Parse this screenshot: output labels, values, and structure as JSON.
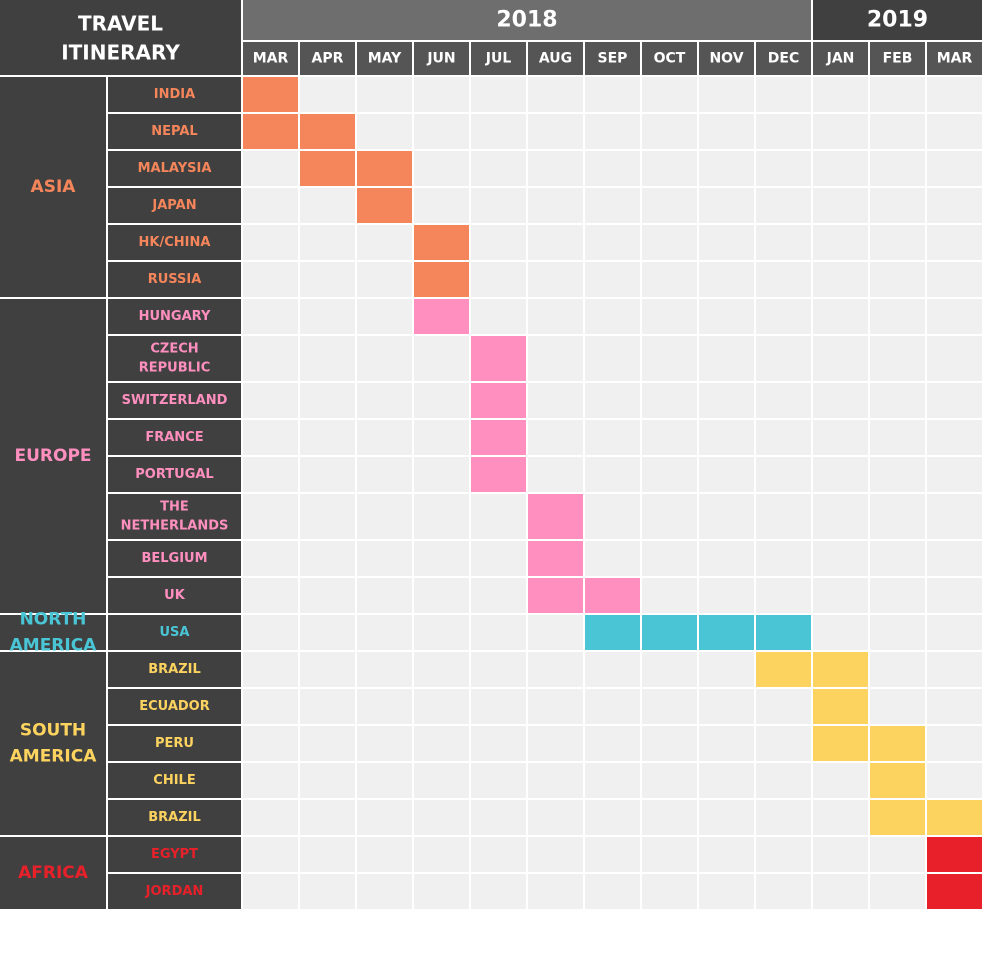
{
  "chart_data": {
    "type": "gantt",
    "title": "TRAVEL\nITINERARY",
    "years": [
      {
        "label": "2018",
        "span": 10
      },
      {
        "label": "2019",
        "span": 3
      }
    ],
    "months": [
      "MAR",
      "APR",
      "MAY",
      "JUN",
      "JUL",
      "AUG",
      "SEP",
      "OCT",
      "NOV",
      "DEC",
      "JAN",
      "FEB",
      "MAR"
    ],
    "regions": [
      {
        "name": "ASIA",
        "color": "#f5855a",
        "countries": [
          {
            "name": "INDIA",
            "months": [
              0
            ]
          },
          {
            "name": "NEPAL",
            "months": [
              0,
              1
            ]
          },
          {
            "name": "MALAYSIA",
            "months": [
              1,
              2
            ]
          },
          {
            "name": "JAPAN",
            "months": [
              2
            ]
          },
          {
            "name": "HK/CHINA",
            "months": [
              3
            ]
          },
          {
            "name": "RUSSIA",
            "months": [
              3
            ]
          }
        ]
      },
      {
        "name": "EUROPE",
        "color": "#ff8fbe",
        "countries": [
          {
            "name": "HUNGARY",
            "months": [
              3
            ]
          },
          {
            "name": "CZECH\nREPUBLIC",
            "months": [
              4
            ]
          },
          {
            "name": "SWITZERLAND",
            "months": [
              4
            ]
          },
          {
            "name": "FRANCE",
            "months": [
              4
            ]
          },
          {
            "name": "PORTUGAL",
            "months": [
              4
            ]
          },
          {
            "name": "THE\nNETHERLANDS",
            "months": [
              5
            ]
          },
          {
            "name": "BELGIUM",
            "months": [
              5
            ]
          },
          {
            "name": "UK",
            "months": [
              5,
              6
            ]
          }
        ]
      },
      {
        "name": "NORTH\nAMERICA",
        "color": "#49c5d5",
        "countries": [
          {
            "name": "USA",
            "months": [
              6,
              7,
              8,
              9
            ]
          }
        ]
      },
      {
        "name": "SOUTH\nAMERICA",
        "color": "#fdd35f",
        "countries": [
          {
            "name": "BRAZIL",
            "months": [
              9,
              10
            ]
          },
          {
            "name": "ECUADOR",
            "months": [
              10
            ]
          },
          {
            "name": "PERU",
            "months": [
              10,
              11
            ]
          },
          {
            "name": "CHILE",
            "months": [
              11
            ]
          },
          {
            "name": "BRAZIL",
            "months": [
              11,
              12
            ]
          }
        ]
      },
      {
        "name": "AFRICA",
        "color": "#e8202a",
        "countries": [
          {
            "name": "EGYPT",
            "months": [
              12
            ]
          },
          {
            "name": "JORDAN",
            "months": [
              12
            ]
          }
        ]
      }
    ],
    "colors": {
      "header_dark": "#404040",
      "year_2018": "#6e6e6e",
      "month_header": "#555555",
      "empty_cell": "#f0f0f0",
      "grid": "#ffffff"
    }
  }
}
